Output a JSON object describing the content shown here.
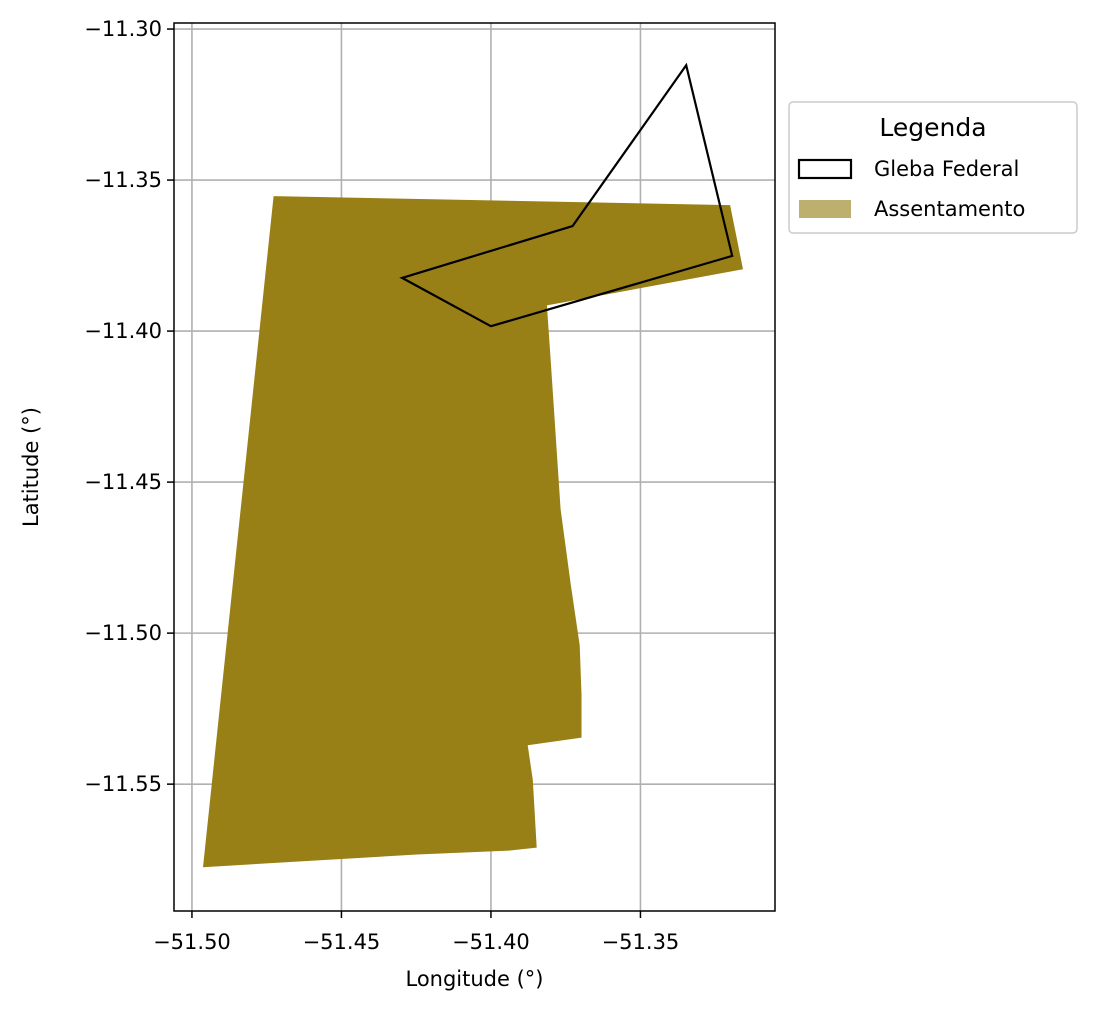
{
  "chart_data": {
    "type": "map",
    "xlabel": "Longitude (°)",
    "ylabel": "Latitude (°)",
    "xlim": [
      -51.506,
      -51.305
    ],
    "ylim": [
      -11.592,
      -11.298
    ],
    "x_ticks": [
      -51.5,
      -51.45,
      -51.4,
      -51.35
    ],
    "x_tick_labels": [
      "−51.50",
      "−51.45",
      "−51.40",
      "−51.35"
    ],
    "y_ticks": [
      -11.3,
      -11.35,
      -11.4,
      -11.45,
      -11.5,
      -11.55
    ],
    "y_tick_labels": [
      "−11.30",
      "−11.35",
      "−11.40",
      "−11.45",
      "−11.50",
      "−11.55"
    ],
    "grid": true,
    "legend": {
      "title": "Legenda",
      "placement": "outside-right-top",
      "entries": [
        {
          "label": "Gleba Federal",
          "style": "outline",
          "color": "#000000"
        },
        {
          "label": "Assentamento",
          "style": "fill",
          "color": "#bdb06f"
        }
      ]
    },
    "series": [
      {
        "name": "Assentamento",
        "style": "fill",
        "color": "#998016",
        "coordinates": [
          [
            -51.4727,
            -11.3553
          ],
          [
            -51.32,
            -11.3583
          ],
          [
            -51.3157,
            -11.3795
          ],
          [
            -51.3813,
            -11.3915
          ],
          [
            -51.38,
            -11.4097
          ],
          [
            -51.3767,
            -11.459
          ],
          [
            -51.3733,
            -11.484
          ],
          [
            -51.3703,
            -11.504
          ],
          [
            -51.3697,
            -11.5203
          ],
          [
            -51.3697,
            -11.5346
          ],
          [
            -51.3877,
            -11.5371
          ],
          [
            -51.386,
            -11.5486
          ],
          [
            -51.3847,
            -11.571
          ],
          [
            -51.394,
            -11.572
          ],
          [
            -51.4247,
            -11.5733
          ],
          [
            -51.4963,
            -11.5775
          ]
        ]
      },
      {
        "name": "Gleba Federal",
        "style": "outline",
        "color": "#000000",
        "coordinates": [
          [
            -51.3347,
            -11.312
          ],
          [
            -51.3193,
            -11.3751
          ],
          [
            -51.4,
            -11.3984
          ],
          [
            -51.4297,
            -11.3824
          ],
          [
            -51.3727,
            -11.3652
          ],
          [
            -51.3347,
            -11.312
          ]
        ]
      }
    ]
  }
}
